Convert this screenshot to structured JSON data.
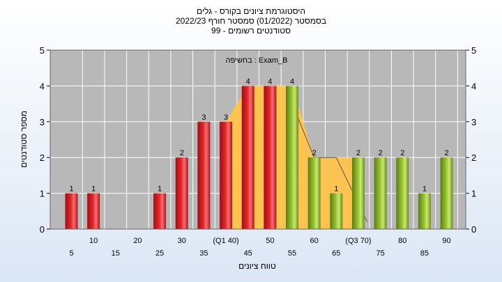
{
  "chart_data": {
    "type": "bar",
    "title_lines": [
      "היסטוגרמת ציונים בקורס - גלים",
      "בסמסטר  (01/2022)  סמסטר חורף 2022/23",
      "סטודנטים רשומים - 99"
    ],
    "annotation": "בחשיפה : Exam_B",
    "ylabel": "מספר סטודנטים",
    "xlabel": "טווח ציונים",
    "ylim": [
      0,
      5
    ],
    "yticks": [
      0,
      1,
      2,
      3,
      4,
      5
    ],
    "grid": true,
    "x_tick_labels": [
      {
        "x": 5,
        "label": "5"
      },
      {
        "x": 10,
        "label": "10"
      },
      {
        "x": 15,
        "label": "15"
      },
      {
        "x": 20,
        "label": "20"
      },
      {
        "x": 25,
        "label": "25"
      },
      {
        "x": 30,
        "label": "30"
      },
      {
        "x": 35,
        "label": "35"
      },
      {
        "x": 40,
        "label": "(Q1 40)"
      },
      {
        "x": 45,
        "label": "45"
      },
      {
        "x": 50,
        "label": "50"
      },
      {
        "x": 55,
        "label": "55"
      },
      {
        "x": 60,
        "label": "60"
      },
      {
        "x": 65,
        "label": "65"
      },
      {
        "x": 70,
        "label": "(Q3 70)"
      },
      {
        "x": 75,
        "label": "75"
      },
      {
        "x": 80,
        "label": "80"
      },
      {
        "x": 85,
        "label": "85"
      },
      {
        "x": 90,
        "label": "90"
      }
    ],
    "bars": [
      {
        "x": 5,
        "value": 1,
        "group": "red"
      },
      {
        "x": 10,
        "value": 1,
        "group": "red"
      },
      {
        "x": 25,
        "value": 1,
        "group": "red"
      },
      {
        "x": 30,
        "value": 2,
        "group": "red"
      },
      {
        "x": 35,
        "value": 3,
        "group": "red"
      },
      {
        "x": 40,
        "value": 3,
        "group": "red"
      },
      {
        "x": 45,
        "value": 4,
        "group": "red"
      },
      {
        "x": 50,
        "value": 4,
        "group": "red"
      },
      {
        "x": 55,
        "value": 4,
        "group": "green"
      },
      {
        "x": 60,
        "value": 2,
        "group": "green"
      },
      {
        "x": 65,
        "value": 1,
        "group": "green"
      },
      {
        "x": 70,
        "value": 2,
        "group": "green"
      },
      {
        "x": 75,
        "value": 2,
        "group": "green"
      },
      {
        "x": 80,
        "value": 2,
        "group": "green"
      },
      {
        "x": 85,
        "value": 1,
        "group": "green"
      },
      {
        "x": 90,
        "value": 2,
        "group": "green"
      }
    ],
    "background_area": [
      {
        "x": 40,
        "value": 3
      },
      {
        "x": 45,
        "value": 4
      },
      {
        "x": 50,
        "value": 4
      },
      {
        "x": 55,
        "value": 4
      },
      {
        "x": 60,
        "value": 2
      },
      {
        "x": 65,
        "value": 2
      },
      {
        "x": 70,
        "value": 2
      }
    ],
    "background_line": [
      {
        "x": 55,
        "value": 3.5
      },
      {
        "x": 60,
        "value": 2
      },
      {
        "x": 65,
        "value": 2
      },
      {
        "x": 72,
        "value": 0.2
      }
    ],
    "colors": {
      "plot_bg": "#b8b8b8",
      "red": "#e0262b",
      "green": "#96c12f",
      "area": "#ffc34a",
      "grid": "#ffffff"
    }
  }
}
